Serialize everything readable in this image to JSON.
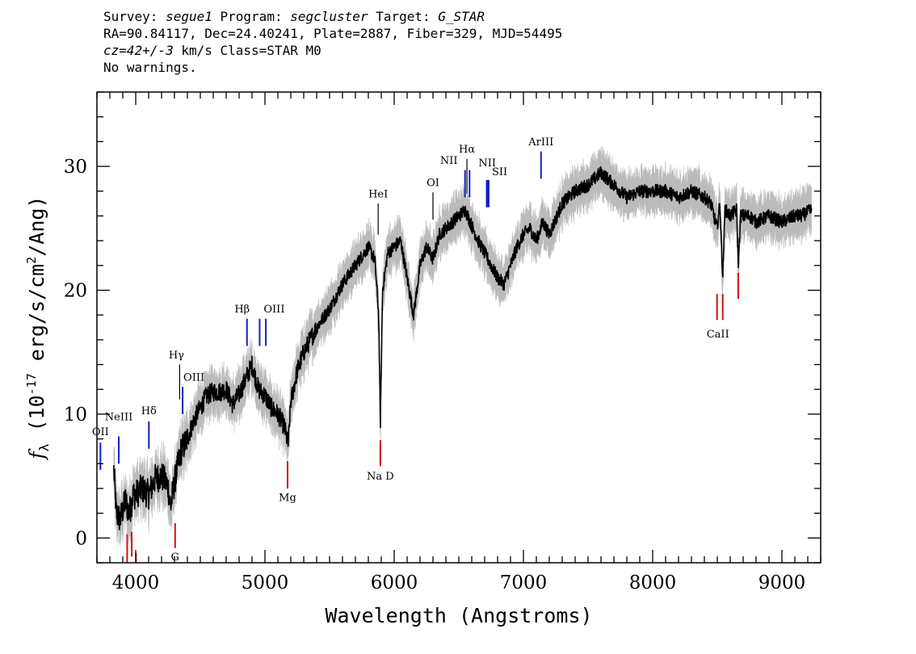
{
  "header": {
    "line1": {
      "survey_label": "Survey:",
      "survey": "segue1",
      "program_label": "Program:",
      "program": "segcluster",
      "target_label": "Target:",
      "target": "G_STAR"
    },
    "line2": "RA=90.84117, Dec=24.40241, Plate=2887, Fiber=329, MJD=54495",
    "line3": {
      "cz": "cz=42+/-3",
      "rest": " km/s Class=STAR M0"
    },
    "line4": "No warnings."
  },
  "chart_data": {
    "type": "line",
    "xlabel": "Wavelength (Angstroms)",
    "ylabel": "f_λ (10^-17 erg/s/cm^2/Ang)",
    "xlim": [
      3700,
      9300
    ],
    "ylim": [
      -2,
      36
    ],
    "x_ticks": [
      4000,
      5000,
      6000,
      7000,
      8000,
      9000
    ],
    "y_ticks": [
      0,
      10,
      20,
      30
    ],
    "colors": {
      "flux": "#000000",
      "error_band": "#bbbbbb",
      "emission": "#1020c0",
      "absorption": "#d01010",
      "neutral": "#000000"
    },
    "series": [
      {
        "kind": "flux",
        "points": [
          [
            3830,
            5.5
          ],
          [
            3850,
            2.0
          ],
          [
            3880,
            1.5
          ],
          [
            3920,
            3.0
          ],
          [
            3950,
            2.0
          ],
          [
            3980,
            3.5
          ],
          [
            4000,
            3.5
          ],
          [
            4050,
            4.0
          ],
          [
            4100,
            3.5
          ],
          [
            4150,
            4.8
          ],
          [
            4200,
            5.0
          ],
          [
            4250,
            4.2
          ],
          [
            4270,
            2.5
          ],
          [
            4300,
            4.5
          ],
          [
            4350,
            7.0
          ],
          [
            4400,
            8.0
          ],
          [
            4450,
            9.5
          ],
          [
            4500,
            10.5
          ],
          [
            4550,
            11.5
          ],
          [
            4600,
            11.8
          ],
          [
            4650,
            11.8
          ],
          [
            4700,
            12.0
          ],
          [
            4750,
            10.8
          ],
          [
            4800,
            11.6
          ],
          [
            4850,
            12.8
          ],
          [
            4900,
            14.0
          ],
          [
            4950,
            12.0
          ],
          [
            5000,
            11.5
          ],
          [
            5050,
            10.5
          ],
          [
            5100,
            10.0
          ],
          [
            5150,
            9.0
          ],
          [
            5180,
            7.5
          ],
          [
            5200,
            11.0
          ],
          [
            5250,
            13.5
          ],
          [
            5300,
            15.0
          ],
          [
            5400,
            17.0
          ],
          [
            5500,
            18.5
          ],
          [
            5600,
            20.5
          ],
          [
            5700,
            22.0
          ],
          [
            5800,
            23.5
          ],
          [
            5850,
            22.5
          ],
          [
            5880,
            18.0
          ],
          [
            5893,
            9.0
          ],
          [
            5910,
            20.0
          ],
          [
            5950,
            23.0
          ],
          [
            6000,
            23.5
          ],
          [
            6050,
            24.0
          ],
          [
            6100,
            21.0
          ],
          [
            6150,
            18.0
          ],
          [
            6200,
            22.0
          ],
          [
            6250,
            23.5
          ],
          [
            6300,
            22.5
          ],
          [
            6350,
            24.5
          ],
          [
            6400,
            25.0
          ],
          [
            6450,
            25.5
          ],
          [
            6500,
            26.0
          ],
          [
            6550,
            26.5
          ],
          [
            6600,
            25.2
          ],
          [
            6650,
            24.0
          ],
          [
            6700,
            23.0
          ],
          [
            6750,
            22.0
          ],
          [
            6800,
            21.0
          ],
          [
            6850,
            20.5
          ],
          [
            6900,
            22.0
          ],
          [
            6950,
            23.5
          ],
          [
            7000,
            24.5
          ],
          [
            7050,
            25.0
          ],
          [
            7100,
            24.0
          ],
          [
            7150,
            25.5
          ],
          [
            7200,
            24.5
          ],
          [
            7300,
            27.0
          ],
          [
            7400,
            28.0
          ],
          [
            7500,
            28.5
          ],
          [
            7600,
            29.5
          ],
          [
            7700,
            28.5
          ],
          [
            7800,
            27.5
          ],
          [
            7900,
            28.0
          ],
          [
            8000,
            28.0
          ],
          [
            8100,
            28.0
          ],
          [
            8200,
            27.5
          ],
          [
            8300,
            28.0
          ],
          [
            8400,
            27.5
          ],
          [
            8450,
            27.0
          ],
          [
            8498,
            25.0
          ],
          [
            8520,
            27.0
          ],
          [
            8542,
            21.0
          ],
          [
            8560,
            26.5
          ],
          [
            8600,
            26.0
          ],
          [
            8650,
            26.5
          ],
          [
            8662,
            22.0
          ],
          [
            8680,
            26.0
          ],
          [
            8750,
            26.0
          ],
          [
            8800,
            25.5
          ],
          [
            8900,
            26.0
          ],
          [
            9000,
            25.5
          ],
          [
            9100,
            26.0
          ],
          [
            9150,
            26.0
          ],
          [
            9230,
            26.5
          ]
        ]
      }
    ],
    "lines": [
      {
        "label": "OII",
        "x": 3727,
        "y0": 5.5,
        "y1": 7.7,
        "color": "emission",
        "label_y": 8.3,
        "label_dx": 0
      },
      {
        "label": "NeIII",
        "x": 3869,
        "y0": 6.0,
        "y1": 8.2,
        "color": "emission",
        "label_y": 9.5,
        "label_dx": 0
      },
      {
        "label": "Hδ",
        "x": 4102,
        "y0": 7.2,
        "y1": 9.4,
        "color": "emission",
        "label_y": 10.0,
        "label_dx": 0
      },
      {
        "label": "Hγ",
        "x": 4340,
        "y0": 11.2,
        "y1": 14.0,
        "color": "neutral",
        "label_y": 14.5,
        "label_dx": -4
      },
      {
        "label": "OIII",
        "x": 4363,
        "y0": 10.0,
        "y1": 12.2,
        "color": "emission",
        "label_y": 12.7,
        "label_dx": 14
      },
      {
        "label": "Hβ",
        "x": 4861,
        "y0": 15.5,
        "y1": 17.7,
        "color": "emission",
        "label_y": 18.2,
        "label_dx": -6
      },
      {
        "label": "OIII",
        "x": 4959,
        "y0": 15.5,
        "y1": 17.7,
        "color": "emission",
        "label_y": 18.2,
        "label_dx": 18
      },
      {
        "label": "",
        "x": 5007,
        "y0": 15.5,
        "y1": 17.7,
        "color": "emission",
        "label_y": 0,
        "label_dx": 0
      },
      {
        "label": "HeI",
        "x": 5876,
        "y0": 24.5,
        "y1": 27.0,
        "color": "neutral",
        "label_y": 27.5,
        "label_dx": 0
      },
      {
        "label": "OI",
        "x": 6300,
        "y0": 25.7,
        "y1": 27.9,
        "color": "neutral",
        "label_y": 28.4,
        "label_dx": 0
      },
      {
        "label": "NII",
        "x": 6548,
        "y0": 27.5,
        "y1": 29.7,
        "color": "emission",
        "label_y": 30.2,
        "label_dx": -20
      },
      {
        "label": "Hα",
        "x": 6563,
        "y0": 27.8,
        "y1": 30.6,
        "color": "neutral",
        "label_y": 31.1,
        "label_dx": 0
      },
      {
        "label": "",
        "x": 6583,
        "y0": 27.5,
        "y1": 29.7,
        "color": "emission",
        "label_y": 0,
        "label_dx": 0
      },
      {
        "label": "NII",
        "x": 6720,
        "y0": 26.7,
        "y1": 28.9,
        "color": "emission",
        "label_y": 30.0,
        "label_dx": 0
      },
      {
        "label": "SII",
        "x": 6716,
        "y0": 26.7,
        "y1": 28.9,
        "color": "emission",
        "label_y": 29.3,
        "label_dx": 16
      },
      {
        "label": "",
        "x": 6731,
        "y0": 26.7,
        "y1": 28.9,
        "color": "emission",
        "label_y": 0,
        "label_dx": 0
      },
      {
        "label": "ArIII",
        "x": 7136,
        "y0": 29.0,
        "y1": 31.2,
        "color": "emission",
        "label_y": 31.7,
        "label_dx": 0
      },
      {
        "label": "",
        "x": 3934,
        "y0": -2.0,
        "y1": 0.3,
        "color": "absorption",
        "label_y": 0,
        "label_dx": 0
      },
      {
        "label": "",
        "x": 3969,
        "y0": -1.5,
        "y1": 0.5,
        "color": "absorption",
        "label_y": 0,
        "label_dx": 0
      },
      {
        "label": "",
        "x": 4002,
        "y0": -2.0,
        "y1": -1.2,
        "color": "absorption",
        "label_y": 0,
        "label_dx": 0
      },
      {
        "label": "G",
        "x": 4305,
        "y0": -0.8,
        "y1": 1.2,
        "color": "absorption",
        "label_y": -1.8,
        "label_dx": 0
      },
      {
        "label": "Mg",
        "x": 5175,
        "y0": 4.0,
        "y1": 6.2,
        "color": "absorption",
        "label_y": 3.0,
        "label_dx": 0
      },
      {
        "label": "Na D",
        "x": 5893,
        "y0": 5.8,
        "y1": 7.9,
        "color": "absorption",
        "label_y": 4.7,
        "label_dx": 0
      },
      {
        "label": "CaII",
        "x": 8542,
        "y0": 17.6,
        "y1": 19.7,
        "color": "absorption",
        "label_y": 16.2,
        "label_dx": -6
      },
      {
        "label": "",
        "x": 8498,
        "y0": 17.6,
        "y1": 19.7,
        "color": "absorption",
        "label_y": 0,
        "label_dx": 0
      },
      {
        "label": "",
        "x": 8662,
        "y0": 19.3,
        "y1": 21.4,
        "color": "absorption",
        "label_y": 0,
        "label_dx": 0
      }
    ]
  }
}
